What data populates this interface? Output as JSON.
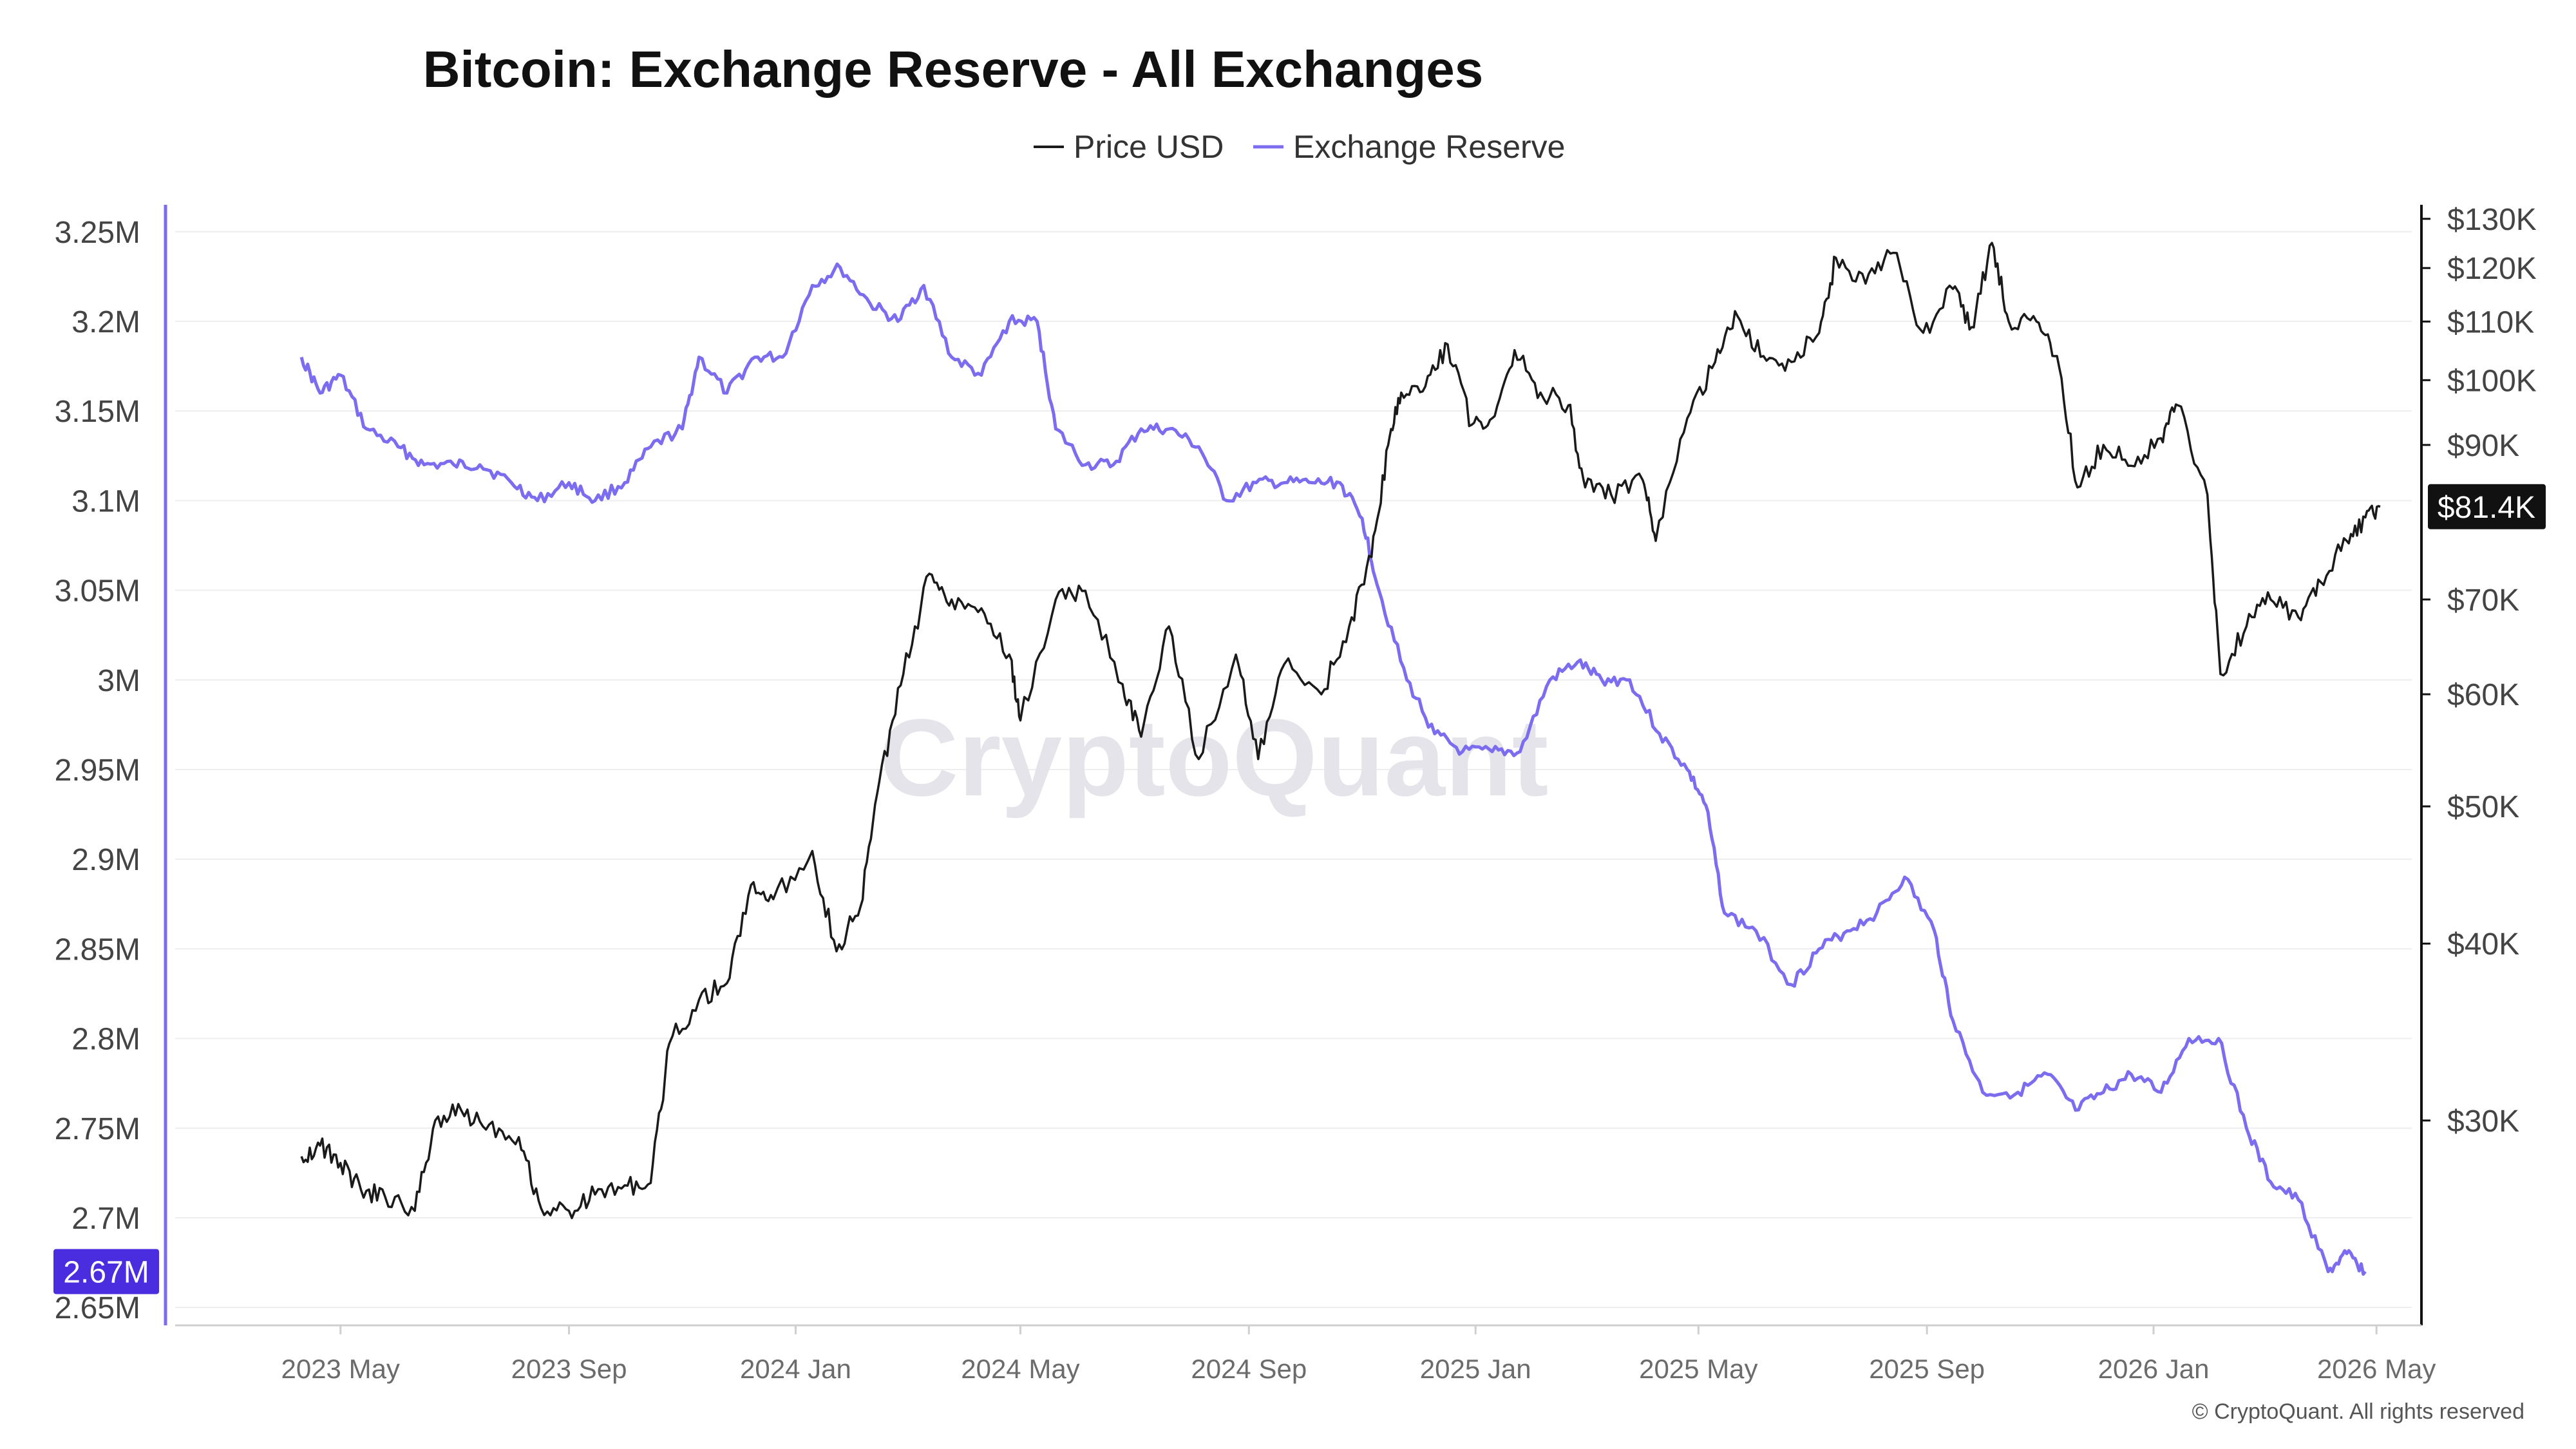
{
  "chart_data": {
    "type": "line",
    "title": "Bitcoin: Exchange Reserve - All Exchanges",
    "watermark": "CryptoQuant",
    "footer": "© CryptoQuant. All rights reserved",
    "legend": {
      "placement": "top-center",
      "items": [
        {
          "label": "Price USD",
          "color": "#1a1a1a"
        },
        {
          "label": "Exchange Reserve",
          "color": "#7b6cf0"
        }
      ]
    },
    "x_axis": {
      "ticks": [
        "2023 May",
        "2023 Sep",
        "2024 Jan",
        "2024 May",
        "2024 Sep",
        "2025 Jan",
        "2025 May",
        "2025 Sep",
        "2026 Jan",
        "2026 May"
      ],
      "range": [
        "2023-02-01",
        "2026-05-20"
      ]
    },
    "y_left": {
      "label": "",
      "range": [
        2.64,
        3.265
      ],
      "unit": "M",
      "ticks": [
        "3.25M",
        "3.2M",
        "3.15M",
        "3.1M",
        "3.05M",
        "3M",
        "2.95M",
        "2.9M",
        "2.85M",
        "2.8M",
        "2.75M",
        "2.7M",
        "2.65M"
      ],
      "tick_values": [
        3.25,
        3.2,
        3.15,
        3.1,
        3.05,
        3.0,
        2.95,
        2.9,
        2.85,
        2.8,
        2.75,
        2.7,
        2.65
      ],
      "current_label": "2.67M",
      "current_value": 2.67
    },
    "y_right": {
      "label": "",
      "scale": "log",
      "range": [
        21500,
        133000
      ],
      "ticks": [
        "$130K",
        "$120K",
        "$110K",
        "$100K",
        "$90K",
        "$70K",
        "$60K",
        "$50K",
        "$40K",
        "$30K"
      ],
      "tick_values": [
        130000,
        120000,
        110000,
        100000,
        90000,
        70000,
        60000,
        50000,
        40000,
        30000
      ],
      "current_label": "$81.4K",
      "current_value": 81400
    },
    "grid": "horizontal",
    "series": [
      {
        "name": "Exchange Reserve",
        "axis": "left",
        "color": "#7b6cf0",
        "unit": "M BTC",
        "points": [
          [
            "2023-04-10",
            3.18
          ],
          [
            "2023-04-20",
            3.16
          ],
          [
            "2023-05-01",
            3.17
          ],
          [
            "2023-05-15",
            3.14
          ],
          [
            "2023-06-01",
            3.13
          ],
          [
            "2023-06-15",
            3.12
          ],
          [
            "2023-07-01",
            3.12
          ],
          [
            "2023-07-15",
            3.12
          ],
          [
            "2023-08-01",
            3.11
          ],
          [
            "2023-08-15",
            3.1
          ],
          [
            "2023-09-01",
            3.11
          ],
          [
            "2023-09-15",
            3.1
          ],
          [
            "2023-10-01",
            3.11
          ],
          [
            "2023-10-15",
            3.13
          ],
          [
            "2023-11-01",
            3.14
          ],
          [
            "2023-11-10",
            3.18
          ],
          [
            "2023-11-25",
            3.16
          ],
          [
            "2023-12-10",
            3.18
          ],
          [
            "2023-12-25",
            3.18
          ],
          [
            "2024-01-10",
            3.22
          ],
          [
            "2024-01-25",
            3.23
          ],
          [
            "2024-02-10",
            3.21
          ],
          [
            "2024-02-25",
            3.2
          ],
          [
            "2024-03-10",
            3.22
          ],
          [
            "2024-03-25",
            3.18
          ],
          [
            "2024-04-10",
            3.17
          ],
          [
            "2024-04-25",
            3.2
          ],
          [
            "2024-05-10",
            3.2
          ],
          [
            "2024-05-20",
            3.14
          ],
          [
            "2024-06-05",
            3.12
          ],
          [
            "2024-06-20",
            3.12
          ],
          [
            "2024-07-05",
            3.14
          ],
          [
            "2024-07-20",
            3.14
          ],
          [
            "2024-08-05",
            3.13
          ],
          [
            "2024-08-20",
            3.1
          ],
          [
            "2024-09-05",
            3.11
          ],
          [
            "2024-09-20",
            3.11
          ],
          [
            "2024-10-05",
            3.11
          ],
          [
            "2024-10-20",
            3.11
          ],
          [
            "2024-11-01",
            3.09
          ],
          [
            "2024-11-10",
            3.05
          ],
          [
            "2024-11-25",
            3.0
          ],
          [
            "2024-12-10",
            2.97
          ],
          [
            "2024-12-25",
            2.96
          ],
          [
            "2025-01-10",
            2.96
          ],
          [
            "2025-01-25",
            2.96
          ],
          [
            "2025-02-10",
            3.0
          ],
          [
            "2025-02-25",
            3.01
          ],
          [
            "2025-03-10",
            3.0
          ],
          [
            "2025-03-25",
            3.0
          ],
          [
            "2025-04-10",
            2.97
          ],
          [
            "2025-04-25",
            2.95
          ],
          [
            "2025-05-05",
            2.93
          ],
          [
            "2025-05-15",
            2.87
          ],
          [
            "2025-06-01",
            2.86
          ],
          [
            "2025-06-20",
            2.83
          ],
          [
            "2025-07-05",
            2.85
          ],
          [
            "2025-07-20",
            2.86
          ],
          [
            "2025-08-05",
            2.87
          ],
          [
            "2025-08-20",
            2.89
          ],
          [
            "2025-09-05",
            2.86
          ],
          [
            "2025-09-15",
            2.81
          ],
          [
            "2025-10-01",
            2.77
          ],
          [
            "2025-10-20",
            2.77
          ],
          [
            "2025-11-05",
            2.78
          ],
          [
            "2025-11-20",
            2.76
          ],
          [
            "2025-12-05",
            2.77
          ],
          [
            "2025-12-20",
            2.78
          ],
          [
            "2026-01-05",
            2.77
          ],
          [
            "2026-01-20",
            2.8
          ],
          [
            "2026-02-05",
            2.8
          ],
          [
            "2026-02-20",
            2.75
          ],
          [
            "2026-03-05",
            2.72
          ],
          [
            "2026-03-20",
            2.71
          ],
          [
            "2026-04-05",
            2.67
          ],
          [
            "2026-04-15",
            2.68
          ],
          [
            "2026-04-25",
            2.67
          ]
        ]
      },
      {
        "name": "Price USD",
        "axis": "right",
        "color": "#1a1a1a",
        "unit": "USD",
        "points": [
          [
            "2023-04-10",
            28300
          ],
          [
            "2023-04-20",
            28800
          ],
          [
            "2023-05-01",
            28000
          ],
          [
            "2023-05-12",
            26800
          ],
          [
            "2023-05-25",
            26500
          ],
          [
            "2023-06-10",
            25900
          ],
          [
            "2023-06-21",
            30000
          ],
          [
            "2023-07-05",
            30500
          ],
          [
            "2023-07-20",
            29800
          ],
          [
            "2023-08-05",
            29200
          ],
          [
            "2023-08-17",
            26000
          ],
          [
            "2023-09-01",
            25900
          ],
          [
            "2023-09-15",
            26600
          ],
          [
            "2023-10-01",
            27000
          ],
          [
            "2023-10-15",
            27100
          ],
          [
            "2023-10-25",
            34000
          ],
          [
            "2023-11-10",
            36500
          ],
          [
            "2023-11-25",
            37500
          ],
          [
            "2023-12-08",
            44000
          ],
          [
            "2023-12-20",
            43000
          ],
          [
            "2024-01-10",
            46500
          ],
          [
            "2024-01-23",
            39500
          ],
          [
            "2024-02-05",
            42500
          ],
          [
            "2024-02-15",
            52000
          ],
          [
            "2024-02-28",
            62000
          ],
          [
            "2024-03-13",
            73000
          ],
          [
            "2024-03-25",
            70000
          ],
          [
            "2024-04-10",
            69000
          ],
          [
            "2024-04-25",
            64000
          ],
          [
            "2024-05-01",
            57500
          ],
          [
            "2024-05-20",
            70000
          ],
          [
            "2024-06-05",
            71000
          ],
          [
            "2024-06-25",
            61000
          ],
          [
            "2024-07-05",
            56000
          ],
          [
            "2024-07-20",
            67000
          ],
          [
            "2024-08-05",
            54000
          ],
          [
            "2024-08-25",
            64000
          ],
          [
            "2024-09-06",
            54000
          ],
          [
            "2024-09-20",
            63000
          ],
          [
            "2024-10-10",
            60000
          ],
          [
            "2024-10-25",
            67000
          ],
          [
            "2024-11-06",
            75000
          ],
          [
            "2024-11-15",
            90000
          ],
          [
            "2024-11-22",
            98000
          ],
          [
            "2024-12-05",
            99000
          ],
          [
            "2024-12-17",
            106000
          ],
          [
            "2024-12-30",
            93000
          ],
          [
            "2025-01-10",
            94000
          ],
          [
            "2025-01-22",
            105000
          ],
          [
            "2025-02-05",
            98000
          ],
          [
            "2025-02-20",
            96000
          ],
          [
            "2025-03-01",
            84000
          ],
          [
            "2025-03-15",
            83000
          ],
          [
            "2025-04-01",
            85000
          ],
          [
            "2025-04-08",
            77000
          ],
          [
            "2025-04-25",
            94000
          ],
          [
            "2025-05-10",
            103000
          ],
          [
            "2025-05-22",
            111000
          ],
          [
            "2025-06-05",
            104000
          ],
          [
            "2025-06-20",
            103000
          ],
          [
            "2025-07-05",
            108000
          ],
          [
            "2025-07-14",
            122000
          ],
          [
            "2025-07-30",
            117000
          ],
          [
            "2025-08-14",
            123000
          ],
          [
            "2025-08-30",
            108000
          ],
          [
            "2025-09-15",
            116000
          ],
          [
            "2025-09-25",
            109000
          ],
          [
            "2025-10-06",
            125000
          ],
          [
            "2025-10-15",
            110000
          ],
          [
            "2025-10-30",
            110000
          ],
          [
            "2025-11-10",
            104000
          ],
          [
            "2025-11-21",
            84000
          ],
          [
            "2025-12-05",
            90000
          ],
          [
            "2025-12-20",
            87000
          ],
          [
            "2026-01-05",
            91000
          ],
          [
            "2026-01-14",
            96000
          ],
          [
            "2026-01-30",
            83000
          ],
          [
            "2026-02-06",
            62000
          ],
          [
            "2026-02-20",
            67000
          ],
          [
            "2026-03-05",
            70000
          ],
          [
            "2026-03-20",
            68000
          ],
          [
            "2026-04-01",
            72000
          ],
          [
            "2026-04-15",
            77000
          ],
          [
            "2026-04-25",
            80000
          ],
          [
            "2026-05-03",
            81400
          ]
        ]
      }
    ]
  }
}
